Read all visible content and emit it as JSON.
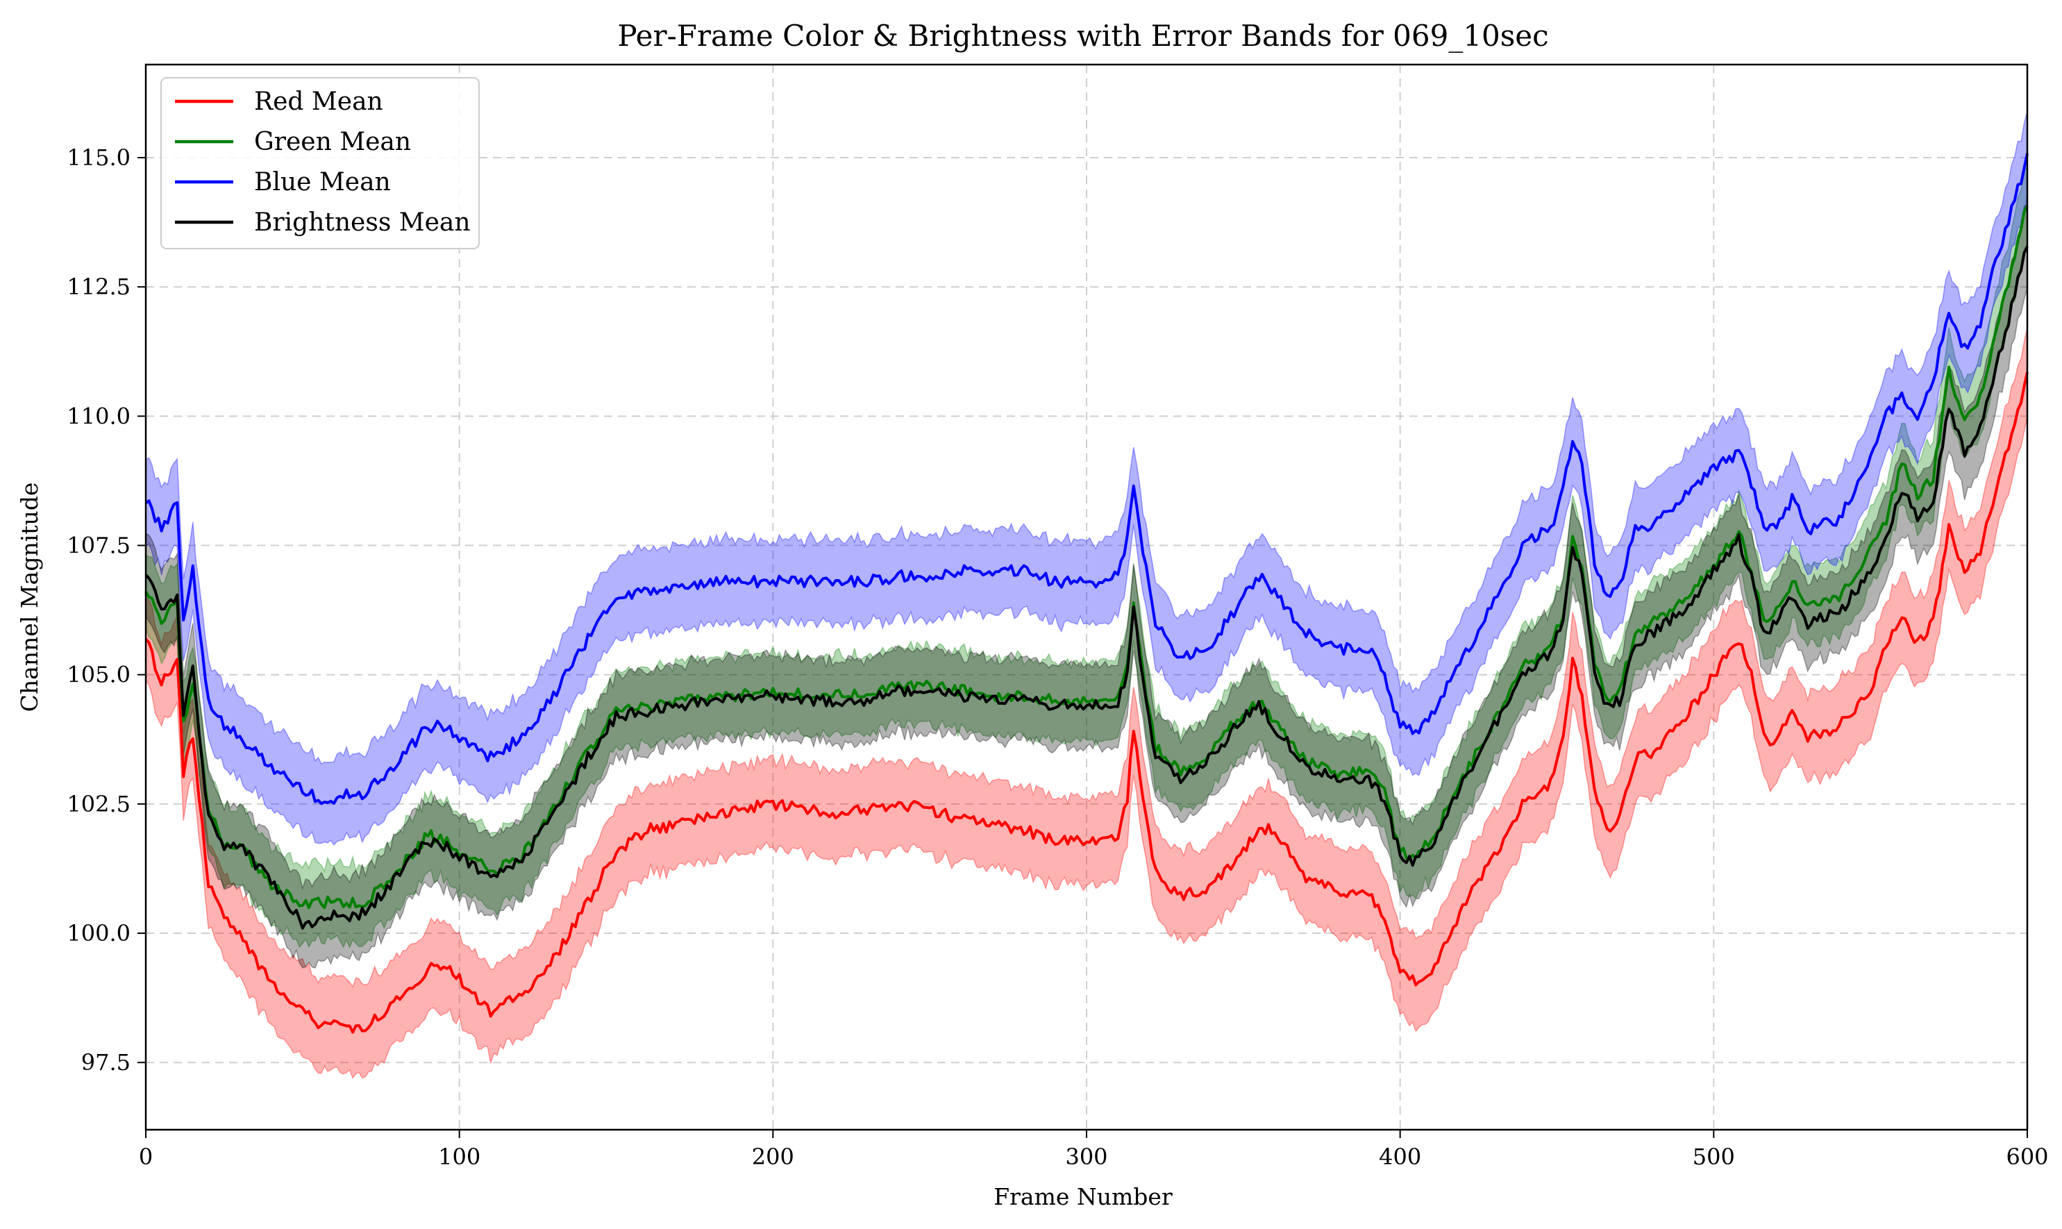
{
  "chart_data": {
    "type": "line",
    "title": "Per-Frame Color & Brightness with Error Bands for 069_10sec",
    "xlabel": "Frame Number",
    "ylabel": "Channel Magnitude",
    "xlim": [
      0,
      600
    ],
    "ylim": [
      96.2,
      116.8
    ],
    "xticks": [
      0,
      100,
      200,
      300,
      400,
      500,
      600
    ],
    "xtick_labels": [
      "0",
      "100",
      "200",
      "300",
      "400",
      "500",
      "600"
    ],
    "yticks": [
      97.5,
      100.0,
      102.5,
      105.0,
      107.5,
      110.0,
      112.5,
      115.0
    ],
    "ytick_labels": [
      "97.5",
      "100.0",
      "102.5",
      "105.0",
      "107.5",
      "110.0",
      "112.5",
      "115.0"
    ],
    "grid": true,
    "legend_position": "top-left",
    "x": [
      0,
      5,
      10,
      12,
      15,
      20,
      25,
      30,
      40,
      50,
      55,
      60,
      65,
      70,
      80,
      90,
      95,
      100,
      110,
      120,
      130,
      140,
      150,
      160,
      170,
      180,
      190,
      200,
      210,
      220,
      230,
      240,
      250,
      260,
      270,
      280,
      290,
      300,
      305,
      310,
      313,
      315,
      318,
      322,
      330,
      340,
      350,
      355,
      360,
      370,
      380,
      390,
      395,
      400,
      405,
      410,
      420,
      430,
      440,
      448,
      452,
      455,
      458,
      462,
      466,
      470,
      475,
      480,
      490,
      500,
      508,
      512,
      516,
      520,
      525,
      530,
      540,
      550,
      555,
      560,
      565,
      570,
      575,
      580,
      585,
      590,
      600
    ],
    "series": [
      {
        "name": "Red Mean",
        "color": "#ff0000",
        "band_color": "#ff0000",
        "values": [
          105.8,
          104.8,
          105.3,
          103.1,
          103.8,
          101.0,
          100.3,
          100.0,
          99.0,
          98.6,
          98.2,
          98.2,
          98.1,
          98.2,
          98.7,
          99.3,
          99.4,
          99.1,
          98.5,
          98.8,
          99.5,
          100.5,
          101.6,
          102.0,
          102.1,
          102.3,
          102.4,
          102.5,
          102.4,
          102.3,
          102.4,
          102.5,
          102.4,
          102.2,
          102.1,
          102.0,
          101.8,
          101.8,
          101.8,
          101.9,
          102.6,
          104.0,
          102.6,
          101.2,
          100.7,
          100.9,
          101.6,
          102.0,
          102.0,
          101.1,
          100.8,
          100.8,
          100.3,
          99.3,
          99.1,
          99.3,
          100.5,
          101.5,
          102.6,
          102.9,
          103.8,
          105.3,
          104.5,
          102.7,
          102.0,
          102.3,
          103.4,
          103.5,
          104.1,
          105.0,
          105.7,
          105.0,
          103.8,
          103.7,
          104.4,
          103.8,
          104.0,
          104.7,
          105.6,
          106.2,
          105.6,
          106.0,
          107.8,
          107.0,
          107.4,
          108.5,
          110.8
        ],
        "band_halfwidth": [
          0.8,
          0.8,
          0.8,
          0.8,
          0.8,
          0.8,
          0.8,
          0.85,
          0.85,
          0.9,
          0.9,
          0.9,
          0.9,
          0.9,
          0.85,
          0.85,
          0.85,
          0.85,
          0.85,
          0.85,
          0.85,
          0.85,
          0.85,
          0.85,
          0.85,
          0.85,
          0.85,
          0.85,
          0.85,
          0.85,
          0.85,
          0.85,
          0.85,
          0.85,
          0.85,
          0.85,
          0.85,
          0.85,
          0.85,
          0.85,
          0.85,
          0.85,
          0.85,
          0.85,
          0.85,
          0.85,
          0.85,
          0.85,
          0.85,
          0.85,
          0.85,
          0.85,
          0.85,
          0.85,
          0.85,
          0.85,
          0.85,
          0.85,
          0.85,
          0.85,
          0.85,
          0.85,
          0.85,
          0.85,
          0.85,
          0.85,
          0.85,
          0.85,
          0.85,
          0.85,
          0.85,
          0.85,
          0.85,
          0.85,
          0.85,
          0.85,
          0.85,
          0.85,
          0.85,
          0.85,
          0.85,
          0.85,
          0.85,
          0.85,
          0.85,
          0.85,
          0.9
        ]
      },
      {
        "name": "Green Mean",
        "color": "#008000",
        "band_color": "#008000",
        "values": [
          106.7,
          106.0,
          106.4,
          104.0,
          104.9,
          102.4,
          101.7,
          101.7,
          100.9,
          100.6,
          100.6,
          100.6,
          100.6,
          100.6,
          101.2,
          101.9,
          101.8,
          101.6,
          101.2,
          101.5,
          102.4,
          103.4,
          104.3,
          104.4,
          104.5,
          104.5,
          104.6,
          104.7,
          104.6,
          104.6,
          104.6,
          104.8,
          104.8,
          104.7,
          104.6,
          104.6,
          104.5,
          104.5,
          104.5,
          104.5,
          105.2,
          106.3,
          105.0,
          103.6,
          103.1,
          103.5,
          104.3,
          104.5,
          104.1,
          103.3,
          103.1,
          103.1,
          102.7,
          101.6,
          101.5,
          101.8,
          103.0,
          104.1,
          105.2,
          105.5,
          106.2,
          107.6,
          107.1,
          105.2,
          104.5,
          104.7,
          105.8,
          106.0,
          106.4,
          107.1,
          107.8,
          107.0,
          106.0,
          106.2,
          106.8,
          106.3,
          106.5,
          107.4,
          108.0,
          109.1,
          108.5,
          108.8,
          110.9,
          109.9,
          110.4,
          111.6,
          114.1
        ],
        "band_halfwidth": [
          0.75,
          0.75,
          0.75,
          0.75,
          0.75,
          0.75,
          0.75,
          0.75,
          0.75,
          0.75,
          0.75,
          0.75,
          0.75,
          0.75,
          0.75,
          0.75,
          0.75,
          0.75,
          0.75,
          0.75,
          0.75,
          0.75,
          0.75,
          0.75,
          0.75,
          0.75,
          0.75,
          0.75,
          0.75,
          0.75,
          0.75,
          0.75,
          0.75,
          0.75,
          0.75,
          0.75,
          0.75,
          0.75,
          0.75,
          0.75,
          0.75,
          0.75,
          0.75,
          0.75,
          0.75,
          0.75,
          0.75,
          0.75,
          0.75,
          0.75,
          0.75,
          0.75,
          0.75,
          0.75,
          0.75,
          0.75,
          0.75,
          0.75,
          0.75,
          0.75,
          0.75,
          0.75,
          0.75,
          0.75,
          0.75,
          0.75,
          0.75,
          0.75,
          0.75,
          0.75,
          0.75,
          0.75,
          0.75,
          0.75,
          0.75,
          0.75,
          0.75,
          0.75,
          0.75,
          0.75,
          0.75,
          0.75,
          0.75,
          0.75,
          0.75,
          0.75,
          0.8
        ]
      },
      {
        "name": "Blue Mean",
        "color": "#0000ff",
        "band_color": "#0000ff",
        "values": [
          108.4,
          107.8,
          108.3,
          106.0,
          107.0,
          104.5,
          104.0,
          103.8,
          103.2,
          102.8,
          102.6,
          102.6,
          102.7,
          102.7,
          103.3,
          104.0,
          104.0,
          103.8,
          103.4,
          103.8,
          104.6,
          105.6,
          106.5,
          106.6,
          106.7,
          106.8,
          106.8,
          106.8,
          106.8,
          106.8,
          106.8,
          106.9,
          106.9,
          107.0,
          107.0,
          107.0,
          106.8,
          106.8,
          106.8,
          106.9,
          107.6,
          108.6,
          107.4,
          106.0,
          105.3,
          105.6,
          106.5,
          106.9,
          106.6,
          105.8,
          105.5,
          105.5,
          105.0,
          104.0,
          103.9,
          104.2,
          105.3,
          106.4,
          107.6,
          107.8,
          108.6,
          109.6,
          109.0,
          107.2,
          106.5,
          106.7,
          107.8,
          107.9,
          108.4,
          109.0,
          109.3,
          108.7,
          107.8,
          107.9,
          108.4,
          107.8,
          108.0,
          109.2,
          110.0,
          110.4,
          110.0,
          110.7,
          112.0,
          111.3,
          111.8,
          113.0,
          115.0
        ],
        "band_halfwidth": [
          0.8,
          0.8,
          0.8,
          0.8,
          0.8,
          0.8,
          0.8,
          0.8,
          0.8,
          0.8,
          0.8,
          0.8,
          0.8,
          0.8,
          0.8,
          0.8,
          0.8,
          0.8,
          0.8,
          0.8,
          0.8,
          0.8,
          0.8,
          0.8,
          0.8,
          0.8,
          0.8,
          0.8,
          0.8,
          0.8,
          0.8,
          0.8,
          0.8,
          0.8,
          0.8,
          0.8,
          0.8,
          0.8,
          0.8,
          0.8,
          0.8,
          0.8,
          0.8,
          0.8,
          0.8,
          0.8,
          0.8,
          0.8,
          0.8,
          0.8,
          0.8,
          0.8,
          0.8,
          0.8,
          0.8,
          0.8,
          0.8,
          0.8,
          0.8,
          0.8,
          0.8,
          0.8,
          0.8,
          0.8,
          0.8,
          0.8,
          0.8,
          0.8,
          0.8,
          0.8,
          0.8,
          0.8,
          0.8,
          0.8,
          0.8,
          0.8,
          0.8,
          0.8,
          0.8,
          0.8,
          0.8,
          0.8,
          0.8,
          0.8,
          0.8,
          0.8,
          0.85
        ]
      },
      {
        "name": "Brightness Mean",
        "color": "#000000",
        "band_color": "#000000",
        "values": [
          107.0,
          106.3,
          106.5,
          104.2,
          105.1,
          102.2,
          101.7,
          101.7,
          101.0,
          100.2,
          100.2,
          100.4,
          100.3,
          100.4,
          101.1,
          101.8,
          101.7,
          101.5,
          101.1,
          101.4,
          102.3,
          103.3,
          104.2,
          104.3,
          104.4,
          104.5,
          104.5,
          104.6,
          104.5,
          104.5,
          104.5,
          104.7,
          104.7,
          104.6,
          104.5,
          104.5,
          104.4,
          104.4,
          104.4,
          104.4,
          105.1,
          106.3,
          104.9,
          103.4,
          103.0,
          103.4,
          104.2,
          104.4,
          104.0,
          103.2,
          103.0,
          103.0,
          102.6,
          101.5,
          101.4,
          101.7,
          102.9,
          104.0,
          105.1,
          105.4,
          106.1,
          107.5,
          107.0,
          105.0,
          104.4,
          104.5,
          105.6,
          105.8,
          106.2,
          107.0,
          107.6,
          106.9,
          105.8,
          106.0,
          106.5,
          106.0,
          106.2,
          107.0,
          107.6,
          108.6,
          108.0,
          108.3,
          110.2,
          109.3,
          109.8,
          110.9,
          113.3
        ],
        "band_halfwidth": [
          0.8,
          0.8,
          0.8,
          0.8,
          0.8,
          0.8,
          0.8,
          0.8,
          0.8,
          0.8,
          0.8,
          0.8,
          0.8,
          0.8,
          0.8,
          0.8,
          0.8,
          0.8,
          0.8,
          0.8,
          0.8,
          0.8,
          0.8,
          0.8,
          0.8,
          0.8,
          0.8,
          0.8,
          0.8,
          0.8,
          0.8,
          0.8,
          0.8,
          0.8,
          0.8,
          0.8,
          0.8,
          0.8,
          0.8,
          0.8,
          0.8,
          0.8,
          0.8,
          0.8,
          0.8,
          0.8,
          0.8,
          0.8,
          0.8,
          0.8,
          0.8,
          0.8,
          0.8,
          0.8,
          0.8,
          0.8,
          0.8,
          0.8,
          0.8,
          0.8,
          0.8,
          0.8,
          0.8,
          0.8,
          0.8,
          0.8,
          0.8,
          0.8,
          0.8,
          0.8,
          0.8,
          0.8,
          0.8,
          0.8,
          0.8,
          0.8,
          0.8,
          0.8,
          0.8,
          0.8,
          0.8,
          0.8,
          0.8,
          0.8,
          0.8,
          0.8,
          0.85
        ]
      }
    ]
  }
}
